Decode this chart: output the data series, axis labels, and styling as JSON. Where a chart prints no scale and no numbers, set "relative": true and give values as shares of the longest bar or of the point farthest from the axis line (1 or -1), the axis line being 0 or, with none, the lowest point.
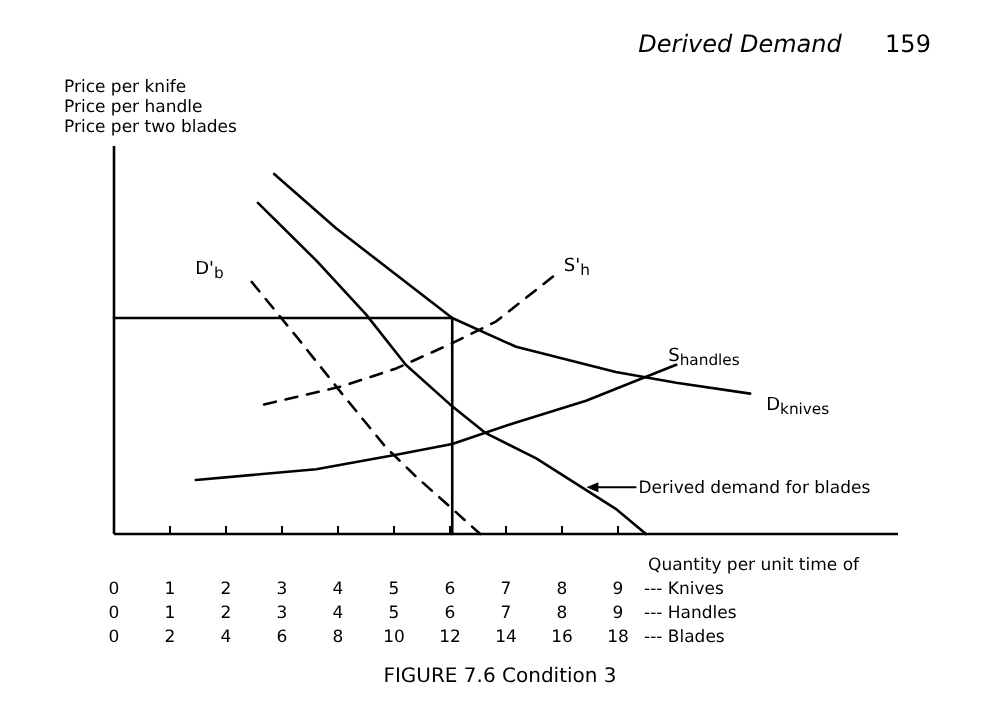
{
  "chart_data": {
    "type": "line",
    "relative": true,
    "ylabel": "Price per knife\nPrice per handle\nPrice per two blades",
    "xlabel": "Quantity per unit time of",
    "x2label": "--- Blades",
    "xlim": [
      0,
      14
    ],
    "xticks": [
      0,
      1,
      2,
      3,
      4,
      5,
      6,
      7,
      8,
      9
    ],
    "x2lim": [
      0,
      28
    ],
    "x2ticks": [
      0,
      2,
      4,
      6,
      8,
      10,
      12,
      14,
      16,
      18
    ],
    "tick_labels": "x",
    "annotations": [
      "Derived Demand",
      "159",
      "Derived demand for blades",
      "--- Knives",
      "FIGURE 7.6 Condition 3",
      "--- Handles",
      "0",
      "1",
      "2",
      "3",
      "4",
      "5",
      "6",
      "7",
      "8",
      "9"
    ],
    "series": [
      {
        "name": "D$_{knives}$",
        "color": "#000000",
        "x": [
          2.86,
          3.96,
          5.04,
          6.04,
          7.18,
          8.96,
          10.04,
          11.36
        ],
        "values": [
          1.0,
          0.85,
          0.72,
          0.6,
          0.52,
          0.45,
          0.42,
          0.39
        ]
      },
      {
        "color": "#000000",
        "x": [
          2.57,
          3.61,
          4.5,
          5.21,
          6.0,
          6.64,
          7.54,
          8.25,
          8.96,
          9.5
        ],
        "values": [
          0.92,
          0.76,
          0.61,
          0.47,
          0.36,
          0.28,
          0.21,
          0.14,
          0.07,
          0
        ]
      },
      {
        "name": "D'$_{b}$",
        "color": "#000000",
        "line_style": "dashed",
        "x": [
          2.46,
          3.25,
          4.07,
          4.86,
          5.39,
          6.04,
          6.54
        ],
        "values": [
          0.7,
          0.55,
          0.39,
          0.24,
          0.16,
          0.07,
          0
        ]
      },
      {
        "name": "S'$_{h}$",
        "color": "#000000",
        "line_style": "dashed",
        "x": [
          2.68,
          4.07,
          5.04,
          6.04,
          6.82,
          7.96
        ],
        "values": [
          0.36,
          0.41,
          0.46,
          0.53,
          0.59,
          0.73
        ]
      },
      {
        "name": "S$_{handles}$",
        "color": "#000000",
        "x": [
          1.46,
          3.61,
          5.04,
          6.04,
          7.18,
          8.43,
          9.39,
          10.04
        ],
        "values": [
          0.15,
          0.18,
          0.22,
          0.25,
          0.31,
          0.37,
          0.43,
          0.47
        ]
      },
      {
        "color": "#000000",
        "x": [
          0,
          6.04,
          6.04
        ],
        "values": [
          0.6,
          0.6,
          0
        ]
      }
    ]
  }
}
